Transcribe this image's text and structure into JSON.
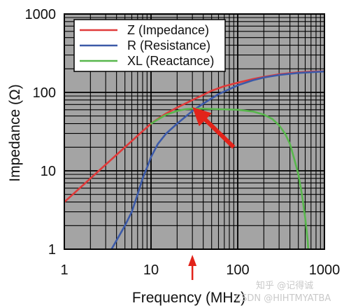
{
  "chart_data": {
    "type": "line",
    "title": "",
    "xlabel": "Frequency (MHz)",
    "ylabel": "Impedance (Ω)",
    "xscale": "log",
    "yscale": "log",
    "xlim": [
      1,
      1000
    ],
    "ylim": [
      1,
      1000
    ],
    "xticks": [
      "1",
      "10",
      "100",
      "1000"
    ],
    "yticks": [
      "1",
      "10",
      "100",
      "1000"
    ],
    "grid": true,
    "legend_position": "top-left",
    "plot_background": "#a4a4a4",
    "series": [
      {
        "name": "Z (Impedance)",
        "color": "#e03a3a",
        "x": [
          1,
          2,
          4,
          8,
          10,
          12,
          15,
          20,
          30,
          40,
          50,
          70,
          100,
          150,
          200,
          300,
          400,
          500,
          700,
          1000
        ],
        "y": [
          4,
          8,
          16,
          32,
          40,
          46,
          54,
          64,
          80,
          93,
          105,
          120,
          133,
          148,
          158,
          170,
          176,
          180,
          184,
          186
        ]
      },
      {
        "name": "R (Resistance)",
        "color": "#3c5aa8",
        "x": [
          3.5,
          5,
          6,
          7,
          8,
          9,
          10,
          12,
          15,
          20,
          30,
          40,
          60,
          100,
          150,
          200,
          300,
          500,
          1000
        ],
        "y": [
          1,
          2,
          3,
          5,
          8,
          11,
          15,
          22,
          30,
          40,
          58,
          72,
          95,
          123,
          143,
          155,
          167,
          177,
          185
        ]
      },
      {
        "name": "XL (Reactance)",
        "color": "#58b74c",
        "x": [
          10,
          12,
          15,
          20,
          25,
          30,
          40,
          60,
          100,
          150,
          200,
          250,
          300,
          350,
          400,
          450,
          500,
          550,
          600,
          640,
          650
        ],
        "y": [
          40,
          45,
          52,
          58,
          61,
          62,
          62,
          61,
          60,
          57,
          52,
          46,
          38,
          30,
          22,
          14,
          9,
          5,
          2.5,
          1.3,
          1
        ]
      }
    ],
    "annotations": [
      {
        "type": "arrow",
        "color": "#e2231a",
        "from": [
          90,
          20
        ],
        "to": [
          30,
          65
        ]
      },
      {
        "type": "arrow",
        "color": "#e2231a",
        "at_x": 30,
        "below_axis": true
      }
    ]
  },
  "watermark": "知乎 @记得诚",
  "watermark2": "CSDN @HIHTMYATBA"
}
